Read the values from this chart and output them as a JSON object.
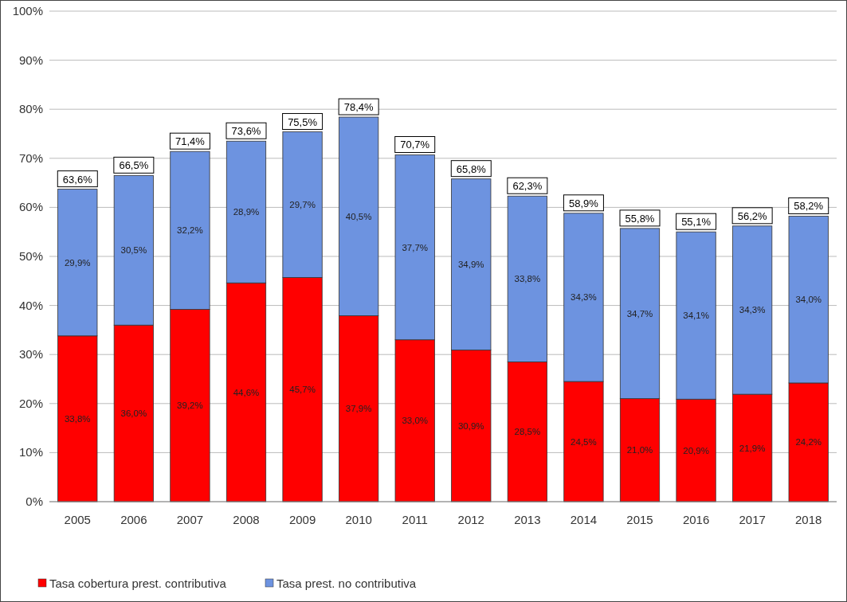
{
  "chart_data": {
    "type": "bar",
    "stacked": true,
    "categories": [
      "2005",
      "2006",
      "2007",
      "2008",
      "2009",
      "2010",
      "2011",
      "2012",
      "2013",
      "2014",
      "2015",
      "2016",
      "2017",
      "2018"
    ],
    "series": [
      {
        "name": "Tasa cobertura prest. contributiva",
        "color": "#ff0000",
        "values": [
          33.8,
          36.0,
          39.2,
          44.6,
          45.7,
          37.9,
          33.0,
          30.9,
          28.5,
          24.5,
          21.0,
          20.9,
          21.9,
          24.2
        ],
        "value_labels": [
          "33,8%",
          "36,0%",
          "39,2%",
          "44,6%",
          "45,7%",
          "37,9%",
          "33,0%",
          "30,9%",
          "28,5%",
          "24,5%",
          "21,0%",
          "20,9%",
          "21,9%",
          "24,2%"
        ]
      },
      {
        "name": "Tasa prest. no contributiva",
        "color": "#6d93e0",
        "values": [
          29.9,
          30.5,
          32.2,
          28.9,
          29.7,
          40.5,
          37.7,
          34.9,
          33.8,
          34.3,
          34.7,
          34.1,
          34.3,
          34.0
        ],
        "value_labels": [
          "29,9%",
          "30,5%",
          "32,2%",
          "28,9%",
          "29,7%",
          "40,5%",
          "37,7%",
          "34,9%",
          "33,8%",
          "34,3%",
          "34,7%",
          "34,1%",
          "34,3%",
          "34,0%"
        ]
      }
    ],
    "totals": [
      "63,6%",
      "66,5%",
      "71,4%",
      "73,6%",
      "75,5%",
      "78,4%",
      "70,7%",
      "65,8%",
      "62,3%",
      "58,9%",
      "55,8%",
      "55,1%",
      "56,2%",
      "58,2%"
    ],
    "ylim": [
      0,
      100
    ],
    "yticks": [
      {
        "value": 0,
        "label": "0%"
      },
      {
        "value": 10,
        "label": "10%"
      },
      {
        "value": 20,
        "label": "20%"
      },
      {
        "value": 30,
        "label": "30%"
      },
      {
        "value": 40,
        "label": "40%"
      },
      {
        "value": 50,
        "label": "50%"
      },
      {
        "value": 60,
        "label": "60%"
      },
      {
        "value": 70,
        "label": "70%"
      },
      {
        "value": 80,
        "label": "80%"
      },
      {
        "value": 90,
        "label": "90%"
      },
      {
        "value": 100,
        "label": "100%"
      }
    ],
    "grid": "y",
    "legend": "bottom left"
  }
}
